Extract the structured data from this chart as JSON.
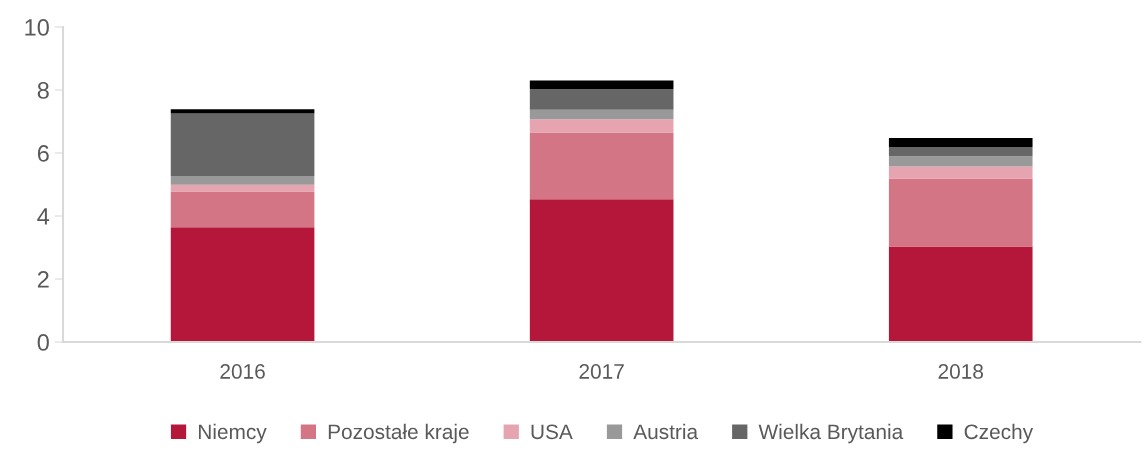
{
  "chart_data": {
    "type": "bar",
    "stacked": true,
    "categories": [
      "2016",
      "2017",
      "2018"
    ],
    "series": [
      {
        "name": "Niemcy",
        "color": "#b5173a",
        "values": [
          3.64,
          4.53,
          3.03
        ]
      },
      {
        "name": "Pozostałe kraje",
        "color": "#d47586",
        "values": [
          1.14,
          2.12,
          2.16
        ]
      },
      {
        "name": "USA",
        "color": "#e6a4b1",
        "values": [
          0.21,
          0.42,
          0.38
        ]
      },
      {
        "name": "Austria",
        "color": "#999999",
        "values": [
          0.28,
          0.3,
          0.33
        ]
      },
      {
        "name": "Wielka Brytania",
        "color": "#666666",
        "values": [
          1.98,
          0.65,
          0.29
        ]
      },
      {
        "name": "Czechy",
        "color": "#000000",
        "values": [
          0.14,
          0.28,
          0.29
        ]
      }
    ],
    "ylim": [
      0,
      10
    ],
    "yticks": [
      0,
      2,
      4,
      6,
      8,
      10
    ],
    "grid": false,
    "legend": "bottom"
  }
}
